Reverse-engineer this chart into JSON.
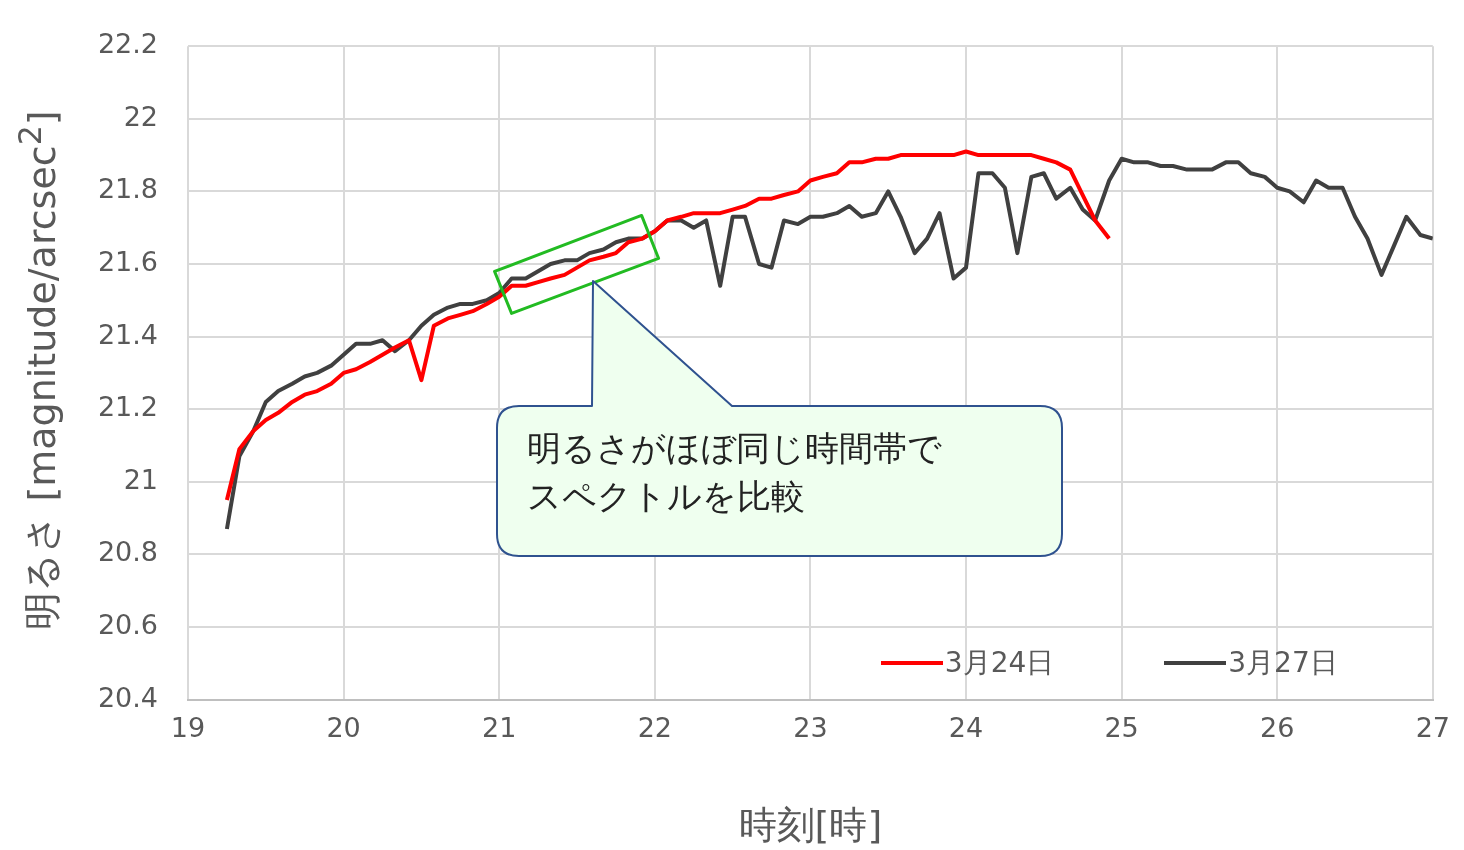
{
  "chart_data": {
    "type": "line",
    "xlabel": "時刻[時]",
    "ylabel": "明るさ [magnitude/arcsec$^{2}$]",
    "xlim": [
      19,
      27
    ],
    "xticks": [
      19,
      20,
      21,
      22,
      23,
      24,
      25,
      26,
      27
    ],
    "ylim": [
      20.4,
      22.2
    ],
    "yticks": [
      20.4,
      20.6,
      20.8,
      21,
      21.2,
      21.4,
      21.6,
      21.8,
      22,
      22.2
    ],
    "grid": true,
    "legend": "bottom right",
    "marker": "none",
    "line_style": "solid",
    "annotations": [
      "明るさがほぼ同じ時間帯でスペクトルを比較"
    ],
    "series": [
      {
        "name": "3月24日",
        "color": "#ff0000",
        "x": [
          19.25,
          19.33,
          19.42,
          19.5,
          19.58,
          19.67,
          19.75,
          19.83,
          19.92,
          20,
          20.08,
          20.17,
          20.25,
          20.33,
          20.42,
          20.5,
          20.58,
          20.67,
          20.75,
          20.83,
          20.92,
          21,
          21.08,
          21.17,
          21.25,
          21.33,
          21.42,
          21.5,
          21.58,
          21.67,
          21.75,
          21.83,
          21.92,
          22,
          22.08,
          22.17,
          22.25,
          22.33,
          22.42,
          22.5,
          22.58,
          22.67,
          22.75,
          22.83,
          22.92,
          23,
          23.08,
          23.17,
          23.25,
          23.33,
          23.42,
          23.5,
          23.58,
          23.67,
          23.75,
          23.83,
          23.92,
          24,
          24.08,
          24.17,
          24.25,
          24.33,
          24.42,
          24.5,
          24.58,
          24.67,
          24.75,
          24.83,
          24.92
        ],
        "values": [
          20.95,
          21.09,
          21.14,
          21.17,
          21.19,
          21.22,
          21.24,
          21.25,
          21.27,
          21.3,
          21.31,
          21.33,
          21.35,
          21.37,
          21.39,
          21.28,
          21.43,
          21.45,
          21.46,
          21.47,
          21.49,
          21.51,
          21.54,
          21.54,
          21.55,
          21.56,
          21.57,
          21.59,
          21.61,
          21.62,
          21.63,
          21.66,
          21.67,
          21.69,
          21.72,
          21.73,
          21.74,
          21.74,
          21.74,
          21.75,
          21.76,
          21.78,
          21.78,
          21.79,
          21.8,
          21.83,
          21.84,
          21.85,
          21.88,
          21.88,
          21.89,
          21.89,
          21.9,
          21.9,
          21.9,
          21.9,
          21.9,
          21.91,
          21.9,
          21.9,
          21.9,
          21.9,
          21.9,
          21.89,
          21.88,
          21.86,
          21.79,
          21.72,
          21.67
        ]
      },
      {
        "name": "3月27日",
        "color": "#404040",
        "x": [
          19.25,
          19.33,
          19.42,
          19.5,
          19.58,
          19.67,
          19.75,
          19.83,
          19.92,
          20,
          20.08,
          20.17,
          20.25,
          20.33,
          20.42,
          20.5,
          20.58,
          20.67,
          20.75,
          20.83,
          20.92,
          21,
          21.08,
          21.17,
          21.25,
          21.33,
          21.42,
          21.5,
          21.58,
          21.67,
          21.75,
          21.83,
          21.92,
          22,
          22.08,
          22.17,
          22.25,
          22.33,
          22.42,
          22.5,
          22.58,
          22.67,
          22.75,
          22.83,
          22.92,
          23,
          23.08,
          23.17,
          23.25,
          23.33,
          23.42,
          23.5,
          23.58,
          23.67,
          23.75,
          23.83,
          23.92,
          24,
          24.08,
          24.17,
          24.25,
          24.33,
          24.42,
          24.5,
          24.58,
          24.67,
          24.75,
          24.83,
          24.92,
          25,
          25.08,
          25.17,
          25.25,
          25.33,
          25.42,
          25.5,
          25.58,
          25.67,
          25.75,
          25.83,
          25.92,
          26,
          26.08,
          26.17,
          26.25,
          26.33,
          26.42,
          26.5,
          26.58,
          26.67,
          26.75,
          26.83,
          26.92,
          27
        ],
        "values": [
          20.87,
          21.07,
          21.14,
          21.22,
          21.25,
          21.27,
          21.29,
          21.3,
          21.32,
          21.35,
          21.38,
          21.38,
          21.39,
          21.36,
          21.39,
          21.43,
          21.46,
          21.48,
          21.49,
          21.49,
          21.5,
          21.52,
          21.56,
          21.56,
          21.58,
          21.6,
          21.61,
          21.61,
          21.63,
          21.64,
          21.66,
          21.67,
          21.67,
          21.69,
          21.72,
          21.72,
          21.7,
          21.72,
          21.54,
          21.73,
          21.73,
          21.6,
          21.59,
          21.72,
          21.71,
          21.73,
          21.73,
          21.74,
          21.76,
          21.73,
          21.74,
          21.8,
          21.73,
          21.63,
          21.67,
          21.74,
          21.56,
          21.59,
          21.85,
          21.85,
          21.81,
          21.63,
          21.84,
          21.85,
          21.78,
          21.81,
          21.75,
          21.72,
          21.83,
          21.89,
          21.88,
          21.88,
          21.87,
          21.87,
          21.86,
          21.86,
          21.86,
          21.88,
          21.88,
          21.85,
          21.84,
          21.81,
          21.8,
          21.77,
          21.83,
          21.81,
          21.81,
          21.73,
          21.67,
          21.57,
          21.65,
          21.73,
          21.68,
          21.67
        ]
      }
    ]
  }
}
